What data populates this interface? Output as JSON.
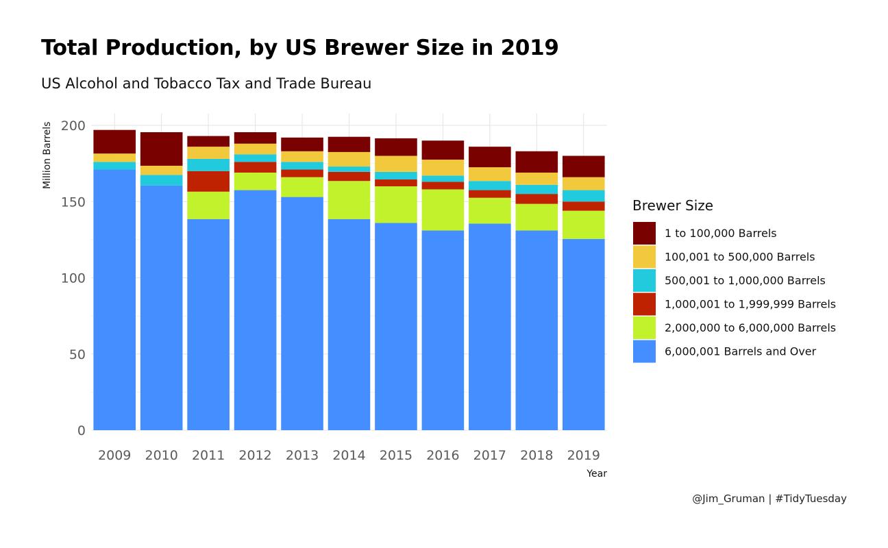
{
  "chart_data": {
    "type": "bar",
    "stacked": true,
    "title": "Total Production, by US Brewer Size in 2019",
    "subtitle": "US Alcohol and Tobacco Tax and Trade Bureau",
    "caption": "@Jim_Gruman | #TidyTuesday",
    "xlabel": "Year",
    "ylabel": "Million Barrels",
    "ylim": [
      0,
      200
    ],
    "yticks": [
      0,
      50,
      100,
      150,
      200
    ],
    "grid": true,
    "legend_title": "Brewer Size",
    "legend_position": "right",
    "categories": [
      "2009",
      "2010",
      "2011",
      "2012",
      "2013",
      "2014",
      "2015",
      "2016",
      "2017",
      "2018",
      "2019"
    ],
    "series": [
      {
        "name": "6,000,001 Barrels and Over",
        "color": "#448EFF",
        "values": [
          171,
          160.5,
          138.5,
          157.5,
          153,
          138.5,
          136,
          131,
          135.5,
          131,
          125.5
        ]
      },
      {
        "name": "2,000,000 to 6,000,000 Barrels",
        "color": "#C2F22C",
        "values": [
          0,
          0,
          18,
          11.5,
          13,
          25,
          24,
          27,
          17,
          17.5,
          18.5
        ]
      },
      {
        "name": "1,000,001 to 1,999,999 Barrels",
        "color": "#BE2200",
        "values": [
          0,
          0,
          13.5,
          7,
          5,
          6,
          4.5,
          5,
          5,
          6.5,
          6
        ]
      },
      {
        "name": "500,001 to 1,000,000 Barrels",
        "color": "#22CADE",
        "values": [
          5,
          7,
          8,
          5,
          5,
          3.5,
          5,
          4,
          6,
          6,
          7.5
        ]
      },
      {
        "name": "100,001 to 500,000 Barrels",
        "color": "#F2C93C",
        "values": [
          5.5,
          6,
          8,
          7,
          7,
          9.5,
          10.5,
          10.5,
          9,
          8,
          8.5
        ]
      },
      {
        "name": "1 to 100,000 Barrels",
        "color": "#790200",
        "values": [
          15.5,
          22,
          7,
          7.5,
          9,
          10,
          11.5,
          12.5,
          13.5,
          14,
          14
        ]
      }
    ],
    "legend_order": [
      "1 to 100,000 Barrels",
      "100,001 to 500,000 Barrels",
      "500,001 to 1,000,000 Barrels",
      "1,000,001 to 1,999,999 Barrels",
      "2,000,000 to 6,000,000 Barrels",
      "6,000,001 Barrels and Over"
    ]
  }
}
